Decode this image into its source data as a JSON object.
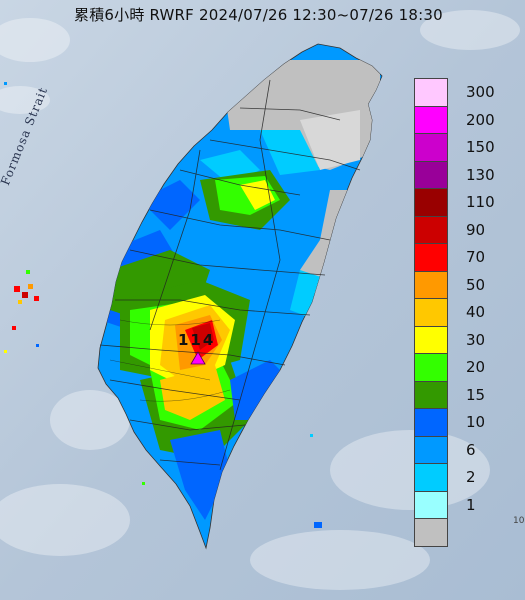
{
  "title": "累積6小時 RWRF 2024/07/26 12:30~07/26 18:30",
  "strait_label": "Formosa Strait",
  "max_value_label": "114",
  "edge_fragment": "10",
  "legend": [
    {
      "label": "300",
      "color": "#ffc8ff"
    },
    {
      "label": "200",
      "color": "#ff00ff"
    },
    {
      "label": "150",
      "color": "#cc00cc"
    },
    {
      "label": "130",
      "color": "#990099"
    },
    {
      "label": "110",
      "color": "#990000"
    },
    {
      "label": "90",
      "color": "#cc0000"
    },
    {
      "label": "70",
      "color": "#ff0000"
    },
    {
      "label": "50",
      "color": "#ff9900"
    },
    {
      "label": "40",
      "color": "#ffc800"
    },
    {
      "label": "30",
      "color": "#ffff00"
    },
    {
      "label": "20",
      "color": "#33ff00"
    },
    {
      "label": "15",
      "color": "#339900"
    },
    {
      "label": "10",
      "color": "#0066ff"
    },
    {
      "label": "6",
      "color": "#0099ff"
    },
    {
      "label": "2",
      "color": "#00ccff"
    },
    {
      "label": "1",
      "color": "#99ffff"
    },
    {
      "label": "",
      "color": "#c0c0c0"
    }
  ]
}
